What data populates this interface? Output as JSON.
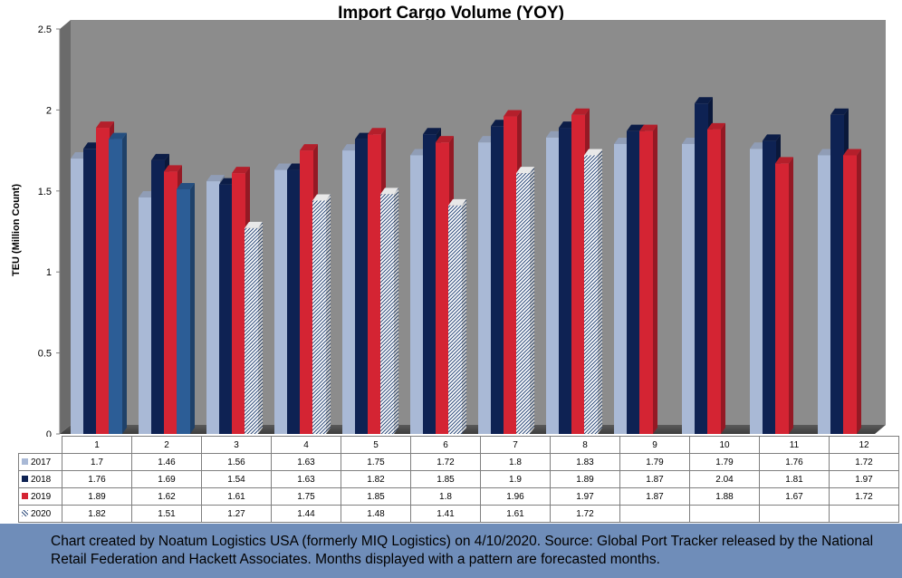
{
  "chart_data": {
    "type": "bar",
    "title": "Import Cargo Volume (YOY)",
    "ylabel": "TEU (Million Count)",
    "xlabel": "",
    "ylim": [
      0,
      2.5
    ],
    "yticks": [
      "0",
      "0.5",
      "1",
      "1.5",
      "2",
      "2.5"
    ],
    "categories": [
      "1",
      "2",
      "3",
      "4",
      "5",
      "6",
      "7",
      "8",
      "9",
      "10",
      "11",
      "12"
    ],
    "series": [
      {
        "name": "2017",
        "color": "#a9b9d6",
        "values": [
          1.7,
          1.46,
          1.56,
          1.63,
          1.75,
          1.72,
          1.8,
          1.83,
          1.79,
          1.79,
          1.76,
          1.72
        ],
        "labels": [
          "1.7",
          "1.46",
          "1.56",
          "1.63",
          "1.75",
          "1.72",
          "1.8",
          "1.83",
          "1.79",
          "1.79",
          "1.76",
          "1.72"
        ]
      },
      {
        "name": "2018",
        "color": "#0e2253",
        "values": [
          1.76,
          1.69,
          1.54,
          1.63,
          1.82,
          1.85,
          1.9,
          1.89,
          1.87,
          2.04,
          1.81,
          1.97
        ],
        "labels": [
          "1.76",
          "1.69",
          "1.54",
          "1.63",
          "1.82",
          "1.85",
          "1.9",
          "1.89",
          "1.87",
          "2.04",
          "1.81",
          "1.97"
        ]
      },
      {
        "name": "2019",
        "color": "#d42433",
        "values": [
          1.89,
          1.62,
          1.61,
          1.75,
          1.85,
          1.8,
          1.96,
          1.97,
          1.87,
          1.88,
          1.67,
          1.72
        ],
        "labels": [
          "1.89",
          "1.62",
          "1.61",
          "1.75",
          "1.85",
          "1.8",
          "1.96",
          "1.97",
          "1.87",
          "1.88",
          "1.67",
          "1.72"
        ]
      },
      {
        "name": "2020",
        "color": "#2c5d96",
        "values": [
          1.82,
          1.51,
          1.27,
          1.44,
          1.48,
          1.41,
          1.61,
          1.72,
          null,
          null,
          null,
          null
        ],
        "labels": [
          "1.82",
          "1.51",
          "1.27",
          "1.44",
          "1.48",
          "1.41",
          "1.61",
          "1.72",
          "",
          "",
          "",
          ""
        ],
        "forecast_from_index": 2
      }
    ],
    "grid": false,
    "legend": "data table below chart",
    "background_color": "#8c8c8c"
  },
  "footer": {
    "text": "Chart created by Noatum Logistics USA (formerly MIQ Logistics) on 4/10/2020. Source: Global Port Tracker released by the National Retail Federation and Hackett Associates. Months displayed with a pattern are forecasted months."
  }
}
